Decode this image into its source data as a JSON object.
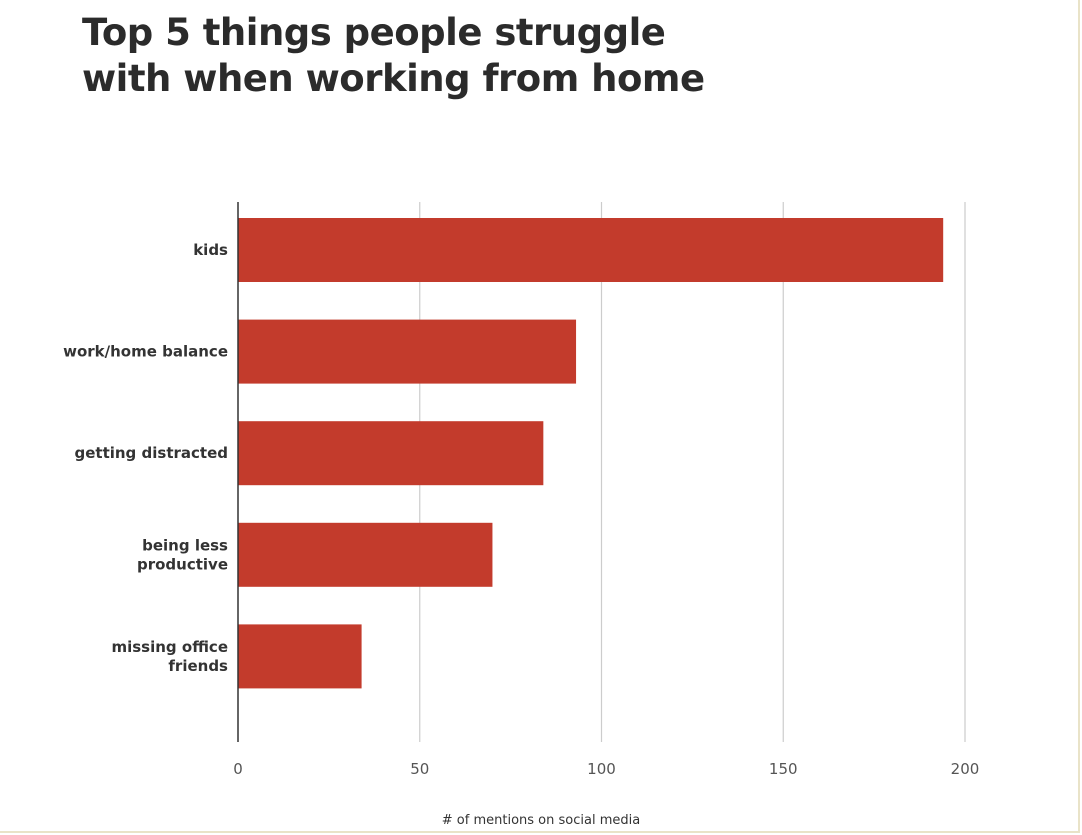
{
  "chart_data": {
    "type": "bar",
    "orientation": "horizontal",
    "title_lines": [
      "Top 5 things people struggle",
      "with when working from home"
    ],
    "categories": [
      [
        "kids"
      ],
      [
        "work/home balance"
      ],
      [
        "getting distracted"
      ],
      [
        "being less",
        "productive"
      ],
      [
        "missing office",
        "friends"
      ]
    ],
    "values": [
      194,
      93,
      84,
      70,
      34
    ],
    "xlabel": "# of mentions on social media",
    "ylabel": "",
    "xlim": [
      0,
      200
    ],
    "xticks": [
      0,
      50,
      100,
      150,
      200
    ],
    "grid": true,
    "legend": "none",
    "bar_color": "#c33b2c",
    "grid_color": "#cccccc",
    "axis_color": "#333333"
  }
}
